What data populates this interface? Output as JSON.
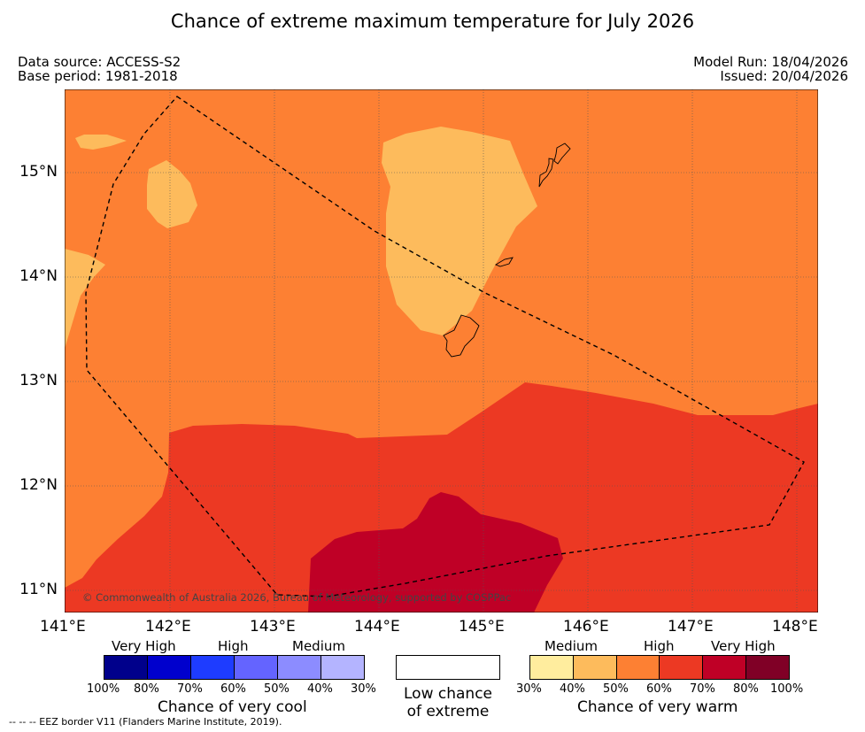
{
  "title": "Chance of extreme maximum temperature for July 2026",
  "meta": {
    "data_source": "Data source: ACCESS-S2",
    "base_period": "Base period: 1981-2018",
    "model_run": "Model Run: 18/04/2026",
    "issued": "Issued: 20/04/2026"
  },
  "map": {
    "copyright": "© Commonwealth of Australia 2026, Bureau of Meteorology, supported by COSPPac",
    "lat_labels": [
      "15°N",
      "14°N",
      "13°N",
      "12°N",
      "11°N"
    ],
    "lon_labels": [
      "141°E",
      "142°E",
      "143°E",
      "144°E",
      "145°E",
      "146°E",
      "147°E",
      "148°E"
    ]
  },
  "legend": {
    "cool": {
      "categories": [
        "Very High",
        "High",
        "Medium"
      ],
      "ticks": [
        "100%",
        "80%",
        "70%",
        "60%",
        "50%",
        "40%",
        "30%"
      ],
      "colors": [
        "#00008b",
        "#0000cd",
        "#1e3cff",
        "#6464ff",
        "#8c8cff",
        "#b4b4ff"
      ],
      "caption": "Chance of very cool"
    },
    "low": {
      "caption_line1": "Low chance",
      "caption_line2": "of extreme"
    },
    "warm": {
      "categories": [
        "Medium",
        "High",
        "Very High"
      ],
      "ticks": [
        "30%",
        "40%",
        "50%",
        "60%",
        "70%",
        "80%",
        "100%"
      ],
      "colors": [
        "#ffed9e",
        "#fdbb5c",
        "#fd8033",
        "#ec3923",
        "#bf0026",
        "#800026"
      ],
      "caption": "Chance of very warm"
    }
  },
  "footer": "--  --  -- EEZ border V11 (Flanders Marine Institute, 2019)."
}
